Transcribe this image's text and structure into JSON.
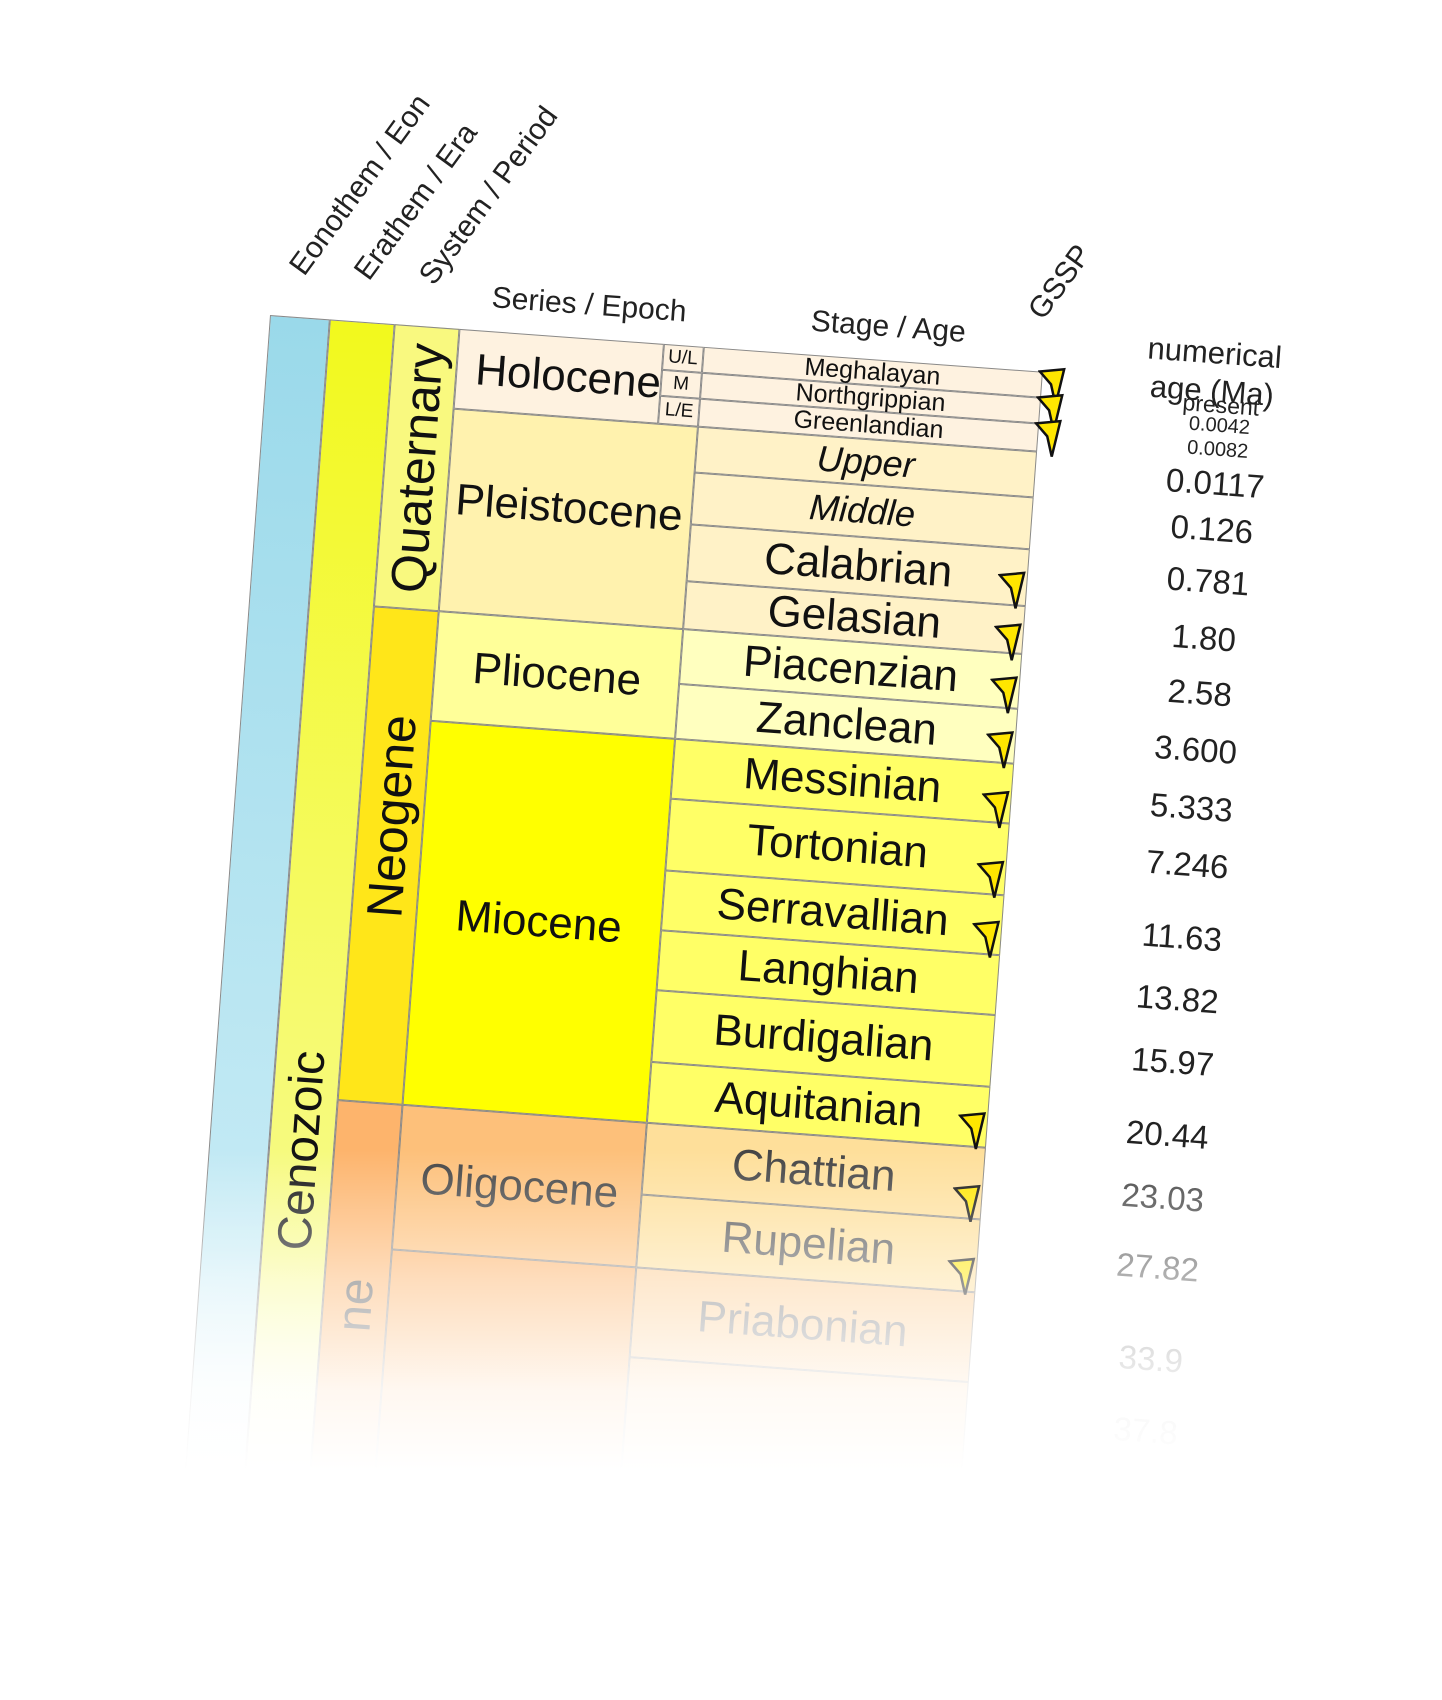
{
  "headers": {
    "eon": "Eonothem / Eon",
    "era": "Erathem / Era",
    "period": "System / Period",
    "epoch": "Series / Epoch",
    "stage": "Stage / Age",
    "gssp": "GSSP",
    "age_line1": "numerical",
    "age_line2": "age (Ma)"
  },
  "era": {
    "name": "Cenozoic"
  },
  "periods": [
    {
      "name": "Quaternary",
      "color": "#f9f97f"
    },
    {
      "name": "Neogene",
      "color": "#ffe619"
    },
    {
      "name": "ne",
      "color": "#fdb46c"
    }
  ],
  "epochs": [
    {
      "name": "Holocene"
    },
    {
      "name": "Pleistocene"
    },
    {
      "name": "Pliocene"
    },
    {
      "name": "Miocene"
    },
    {
      "name": "Oligocene"
    }
  ],
  "holocene_subdivisions": [
    "U/L",
    "M",
    "L/E"
  ],
  "stages": [
    {
      "name": "Meghalayan"
    },
    {
      "name": "Northgrippian"
    },
    {
      "name": "Greenlandian"
    },
    {
      "name": "Upper"
    },
    {
      "name": "Middle"
    },
    {
      "name": "Calabrian"
    },
    {
      "name": "Gelasian"
    },
    {
      "name": "Piacenzian"
    },
    {
      "name": "Zanclean"
    },
    {
      "name": "Messinian"
    },
    {
      "name": "Tortonian"
    },
    {
      "name": "Serravallian"
    },
    {
      "name": "Langhian"
    },
    {
      "name": "Burdigalian"
    },
    {
      "name": "Aquitanian"
    },
    {
      "name": "Chattian"
    },
    {
      "name": "Rupelian"
    },
    {
      "name": "Priabonian"
    }
  ],
  "ages": [
    "present",
    "0.0042",
    "0.0082",
    "0.0117",
    "0.126",
    "0.781",
    "1.80",
    "2.58",
    "3.600",
    "5.333",
    "7.246",
    "11.63",
    "13.82",
    "15.97",
    "20.44",
    "23.03",
    "27.82",
    "33.9",
    "37.8"
  ],
  "colors": {
    "eon": "#9ad9ea",
    "era": "#f2f91d",
    "holocene": "#fef2e0",
    "pleistocene": "#fff2ae",
    "pliocene": "#ffff99",
    "miocene": "#ffff00",
    "oligocene": "#fdc07a",
    "gssp": "#ffe600"
  }
}
